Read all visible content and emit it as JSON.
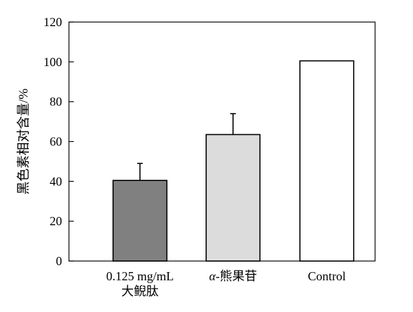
{
  "chart_data": {
    "type": "bar",
    "title": "",
    "xlabel": "",
    "ylabel": "黑色素相对含量/%",
    "ylim": [
      0,
      120
    ],
    "yticks": [
      0,
      20,
      40,
      60,
      80,
      100,
      120
    ],
    "grid": false,
    "legend": "none",
    "categories": [
      {
        "lines": [
          "0.125 mg/mL",
          "大鲵肽"
        ]
      },
      {
        "lines": [
          "α-熊果苷"
        ]
      },
      {
        "lines": [
          "Control"
        ]
      }
    ],
    "values": [
      40.5,
      63.5,
      100.5
    ],
    "errors": [
      8.5,
      10.5,
      0
    ],
    "bar_colors": [
      "#808080",
      "#dcdcdc",
      "#ffffff"
    ]
  }
}
